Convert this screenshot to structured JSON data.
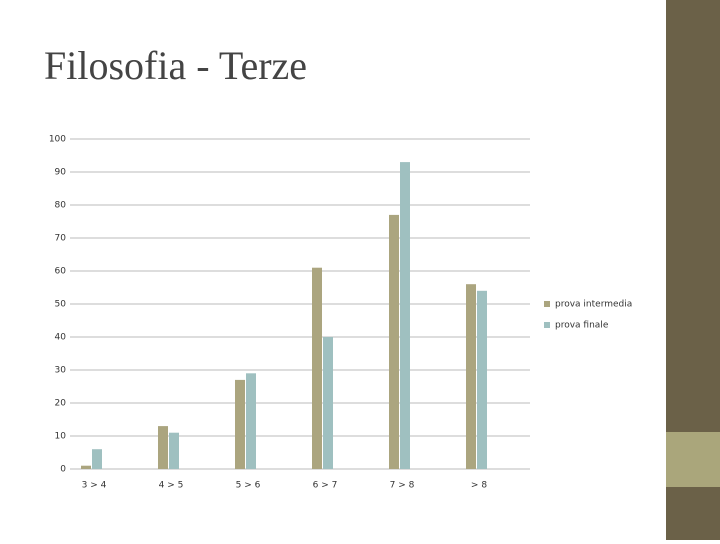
{
  "chart_data": {
    "type": "bar",
    "title": "Filosofia - Terze",
    "categories": [
      "3 > 4",
      "4 > 5",
      "5 > 6",
      "6 > 7",
      "7 > 8",
      "> 8"
    ],
    "series": [
      {
        "name": "prova intermedia",
        "color": "#aba57f",
        "values": [
          1,
          13,
          27,
          61,
          77,
          56
        ]
      },
      {
        "name": "prova finale",
        "color": "#9fc0c0",
        "values": [
          6,
          11,
          29,
          40,
          93,
          54
        ]
      }
    ],
    "ylim": [
      0,
      100
    ],
    "yticks": [
      0,
      10,
      20,
      30,
      40,
      50,
      60,
      70,
      80,
      90,
      100
    ],
    "grid": true,
    "legend": "right"
  }
}
